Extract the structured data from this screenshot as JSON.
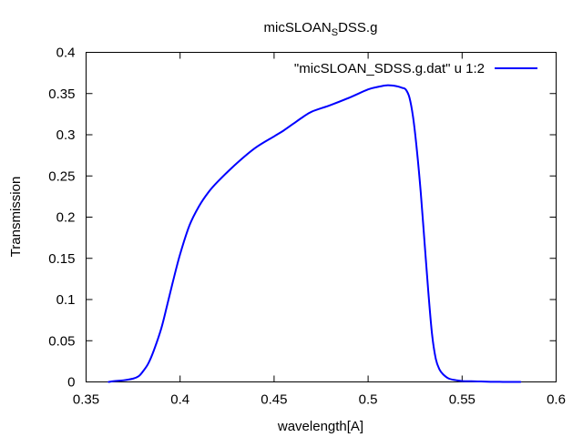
{
  "chart_data": {
    "type": "line",
    "title": {
      "main": "micSLOAN",
      "subscript": "S",
      "rest": "DSS.g"
    },
    "xlabel": "wavelength[A]",
    "ylabel": "Transmission",
    "xlim": [
      0.35,
      0.6
    ],
    "ylim": [
      0,
      0.4
    ],
    "x_ticks": [
      0.35,
      0.4,
      0.45,
      0.5,
      0.55,
      0.6
    ],
    "x_tick_labels": [
      "0.35",
      "0.4",
      "0.45",
      "0.5",
      "0.55",
      "0.6"
    ],
    "y_ticks": [
      0,
      0.05,
      0.1,
      0.15,
      0.2,
      0.25,
      0.3,
      0.35,
      0.4
    ],
    "y_tick_labels": [
      "0",
      "0.05",
      "0.1",
      "0.15",
      "0.2",
      "0.25",
      "0.3",
      "0.35",
      "0.4"
    ],
    "grid": false,
    "legend_position": "top-right",
    "series": [
      {
        "name": "\"micSLOAN_SDSS.g.dat\" u 1:2",
        "color": "#0000ff",
        "x": [
          0.362,
          0.365,
          0.37,
          0.375,
          0.378,
          0.38,
          0.383,
          0.386,
          0.39,
          0.393,
          0.396,
          0.4,
          0.405,
          0.41,
          0.415,
          0.42,
          0.43,
          0.44,
          0.45,
          0.455,
          0.46,
          0.465,
          0.47,
          0.48,
          0.49,
          0.5,
          0.505,
          0.51,
          0.515,
          0.518,
          0.52,
          0.522,
          0.524,
          0.526,
          0.528,
          0.53,
          0.532,
          0.534,
          0.536,
          0.538,
          0.54,
          0.543,
          0.547,
          0.55,
          0.555,
          0.56,
          0.565,
          0.57,
          0.575,
          0.581
        ],
        "values": [
          0.0,
          0.001,
          0.002,
          0.004,
          0.007,
          0.012,
          0.022,
          0.038,
          0.065,
          0.092,
          0.12,
          0.155,
          0.19,
          0.213,
          0.23,
          0.243,
          0.265,
          0.284,
          0.298,
          0.305,
          0.313,
          0.321,
          0.328,
          0.336,
          0.345,
          0.355,
          0.358,
          0.36,
          0.359,
          0.357,
          0.355,
          0.345,
          0.32,
          0.28,
          0.23,
          0.17,
          0.11,
          0.058,
          0.028,
          0.015,
          0.009,
          0.004,
          0.002,
          0.001,
          0.0008,
          0.0005,
          0.0002,
          0.0001,
          0.0,
          0.0
        ]
      }
    ]
  }
}
